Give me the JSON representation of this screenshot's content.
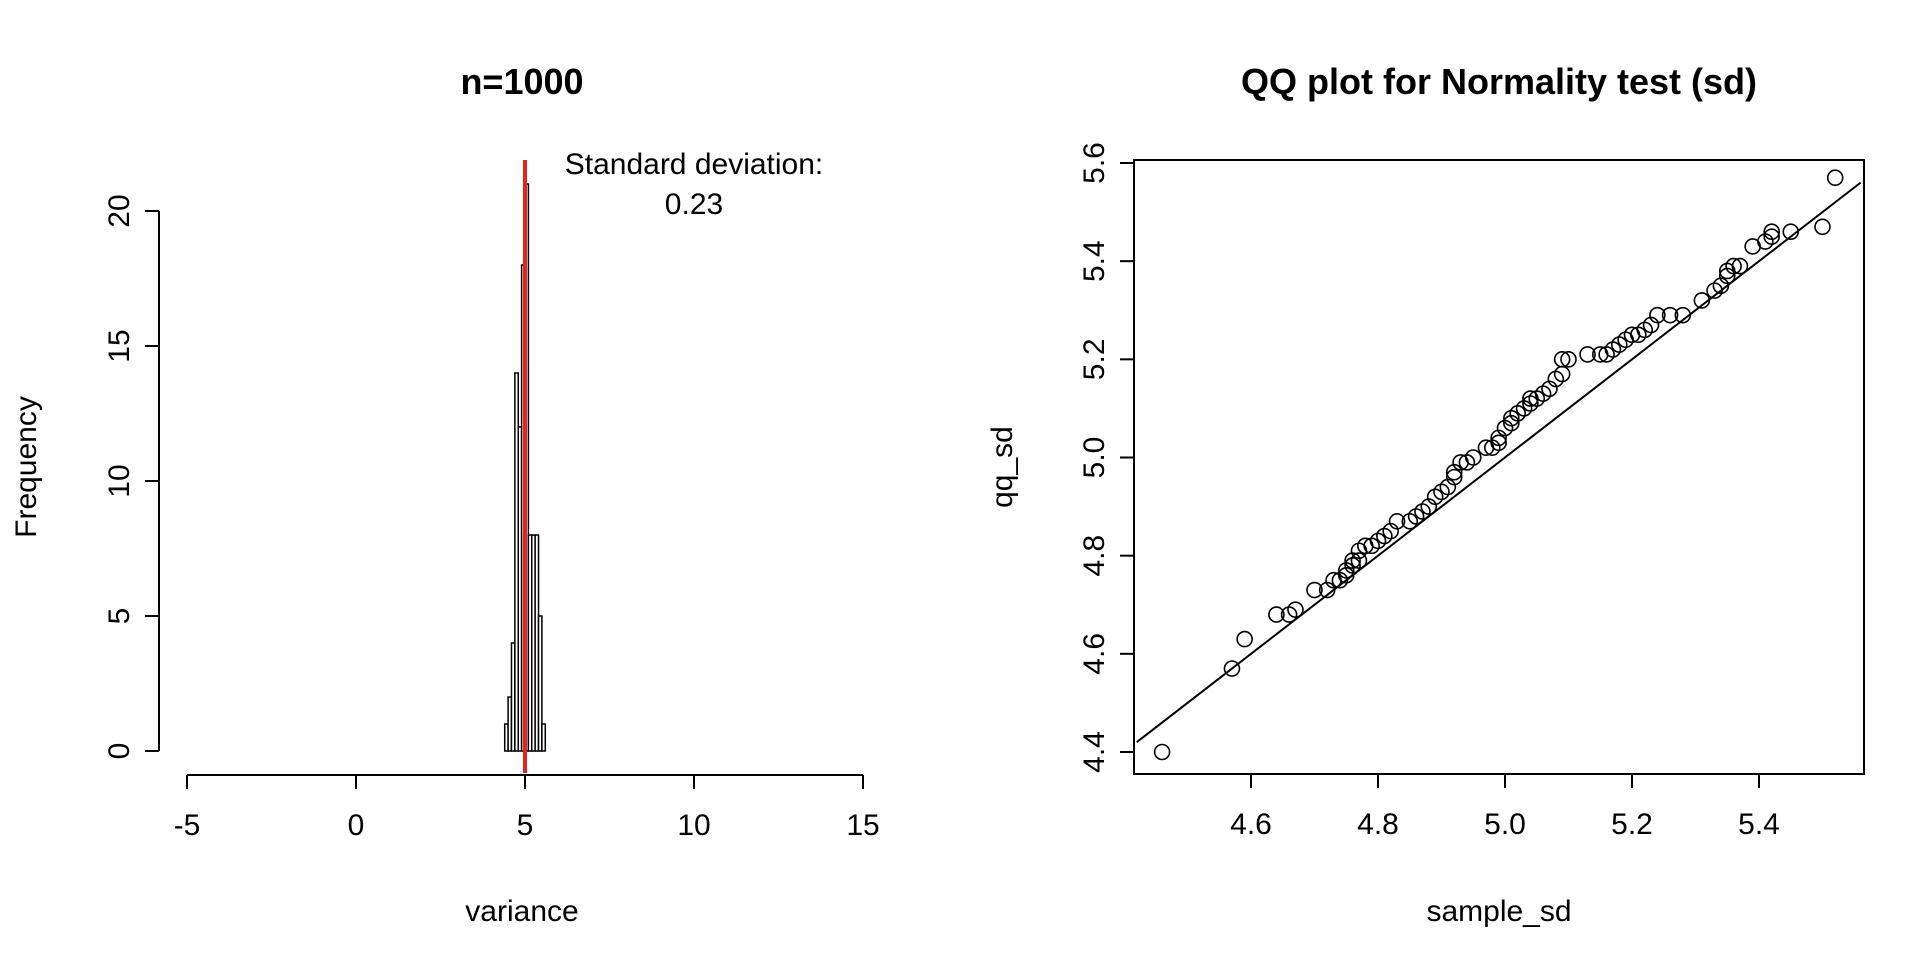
{
  "chart_data": [
    {
      "type": "histogram",
      "title": "n=1000",
      "xlabel": "variance",
      "ylabel": "Frequency",
      "xlim": [
        -5,
        15
      ],
      "ylim": [
        0,
        21
      ],
      "x_ticks": [
        -5,
        0,
        5,
        10,
        15
      ],
      "x_tick_labels": [
        "-5",
        "0",
        "5",
        "10",
        "15"
      ],
      "y_ticks": [
        0,
        5,
        10,
        15,
        20
      ],
      "y_tick_labels": [
        "0",
        "5",
        "10",
        "15",
        "20"
      ],
      "bins": [
        {
          "x0": 4.4,
          "x1": 4.5,
          "count": 1
        },
        {
          "x0": 4.5,
          "x1": 4.6,
          "count": 2
        },
        {
          "x0": 4.6,
          "x1": 4.7,
          "count": 4
        },
        {
          "x0": 4.7,
          "x1": 4.8,
          "count": 14
        },
        {
          "x0": 4.8,
          "x1": 4.9,
          "count": 12
        },
        {
          "x0": 4.9,
          "x1": 5.0,
          "count": 18
        },
        {
          "x0": 5.0,
          "x1": 5.1,
          "count": 21
        },
        {
          "x0": 5.1,
          "x1": 5.2,
          "count": 8
        },
        {
          "x0": 5.2,
          "x1": 5.3,
          "count": 8
        },
        {
          "x0": 5.3,
          "x1": 5.4,
          "count": 8
        },
        {
          "x0": 5.4,
          "x1": 5.5,
          "count": 5
        },
        {
          "x0": 5.5,
          "x1": 5.6,
          "count": 1
        }
      ],
      "vline": {
        "x": 5.0,
        "color": "#e8231f"
      },
      "annotation": {
        "x": 10,
        "line1": "Standard deviation:",
        "line2": "0.23"
      },
      "grid": false,
      "legend": "none"
    },
    {
      "type": "scatter",
      "title": "QQ plot for Normality test (sd)",
      "xlabel": "sample_sd",
      "ylabel": "qq_sd",
      "xlim": [
        4.42,
        5.56
      ],
      "ylim": [
        4.36,
        5.61
      ],
      "x_ticks": [
        4.6,
        4.8,
        5.0,
        5.2,
        5.4
      ],
      "x_tick_labels": [
        "4.6",
        "4.8",
        "5.0",
        "5.2",
        "5.4"
      ],
      "y_ticks": [
        4.4,
        4.6,
        4.8,
        5.0,
        5.2,
        5.4,
        5.6
      ],
      "y_tick_labels": [
        "4.4",
        "4.6",
        "4.8",
        "5.0",
        "5.2",
        "5.4",
        "5.6"
      ],
      "reference_line": {
        "intercept": 0,
        "slope": 1
      },
      "points": [
        [
          4.46,
          4.4
        ],
        [
          4.57,
          4.57
        ],
        [
          4.59,
          4.63
        ],
        [
          4.64,
          4.68
        ],
        [
          4.66,
          4.68
        ],
        [
          4.67,
          4.69
        ],
        [
          4.7,
          4.73
        ],
        [
          4.72,
          4.73
        ],
        [
          4.73,
          4.75
        ],
        [
          4.74,
          4.75
        ],
        [
          4.75,
          4.76
        ],
        [
          4.75,
          4.77
        ],
        [
          4.76,
          4.78
        ],
        [
          4.76,
          4.79
        ],
        [
          4.77,
          4.79
        ],
        [
          4.77,
          4.81
        ],
        [
          4.78,
          4.82
        ],
        [
          4.79,
          4.82
        ],
        [
          4.8,
          4.83
        ],
        [
          4.81,
          4.84
        ],
        [
          4.82,
          4.85
        ],
        [
          4.83,
          4.87
        ],
        [
          4.85,
          4.87
        ],
        [
          4.86,
          4.88
        ],
        [
          4.87,
          4.89
        ],
        [
          4.88,
          4.9
        ],
        [
          4.89,
          4.92
        ],
        [
          4.9,
          4.93
        ],
        [
          4.91,
          4.94
        ],
        [
          4.92,
          4.96
        ],
        [
          4.92,
          4.97
        ],
        [
          4.93,
          4.99
        ],
        [
          4.94,
          4.99
        ],
        [
          4.95,
          5.0
        ],
        [
          4.97,
          5.02
        ],
        [
          4.98,
          5.02
        ],
        [
          4.99,
          5.03
        ],
        [
          4.99,
          5.04
        ],
        [
          5.0,
          5.06
        ],
        [
          5.01,
          5.07
        ],
        [
          5.01,
          5.08
        ],
        [
          5.02,
          5.09
        ],
        [
          5.03,
          5.1
        ],
        [
          5.04,
          5.11
        ],
        [
          5.04,
          5.12
        ],
        [
          5.05,
          5.12
        ],
        [
          5.06,
          5.13
        ],
        [
          5.07,
          5.14
        ],
        [
          5.08,
          5.16
        ],
        [
          5.09,
          5.17
        ],
        [
          5.09,
          5.2
        ],
        [
          5.1,
          5.2
        ],
        [
          5.13,
          5.21
        ],
        [
          5.15,
          5.21
        ],
        [
          5.16,
          5.21
        ],
        [
          5.17,
          5.22
        ],
        [
          5.18,
          5.23
        ],
        [
          5.19,
          5.24
        ],
        [
          5.2,
          5.25
        ],
        [
          5.21,
          5.25
        ],
        [
          5.22,
          5.26
        ],
        [
          5.23,
          5.27
        ],
        [
          5.24,
          5.29
        ],
        [
          5.26,
          5.29
        ],
        [
          5.28,
          5.29
        ],
        [
          5.31,
          5.32
        ],
        [
          5.33,
          5.34
        ],
        [
          5.34,
          5.35
        ],
        [
          5.35,
          5.37
        ],
        [
          5.35,
          5.38
        ],
        [
          5.36,
          5.39
        ],
        [
          5.37,
          5.39
        ],
        [
          5.39,
          5.43
        ],
        [
          5.41,
          5.44
        ],
        [
          5.42,
          5.45
        ],
        [
          5.42,
          5.46
        ],
        [
          5.45,
          5.46
        ],
        [
          5.5,
          5.47
        ],
        [
          5.52,
          5.57
        ]
      ],
      "grid": false,
      "legend": "none"
    }
  ]
}
